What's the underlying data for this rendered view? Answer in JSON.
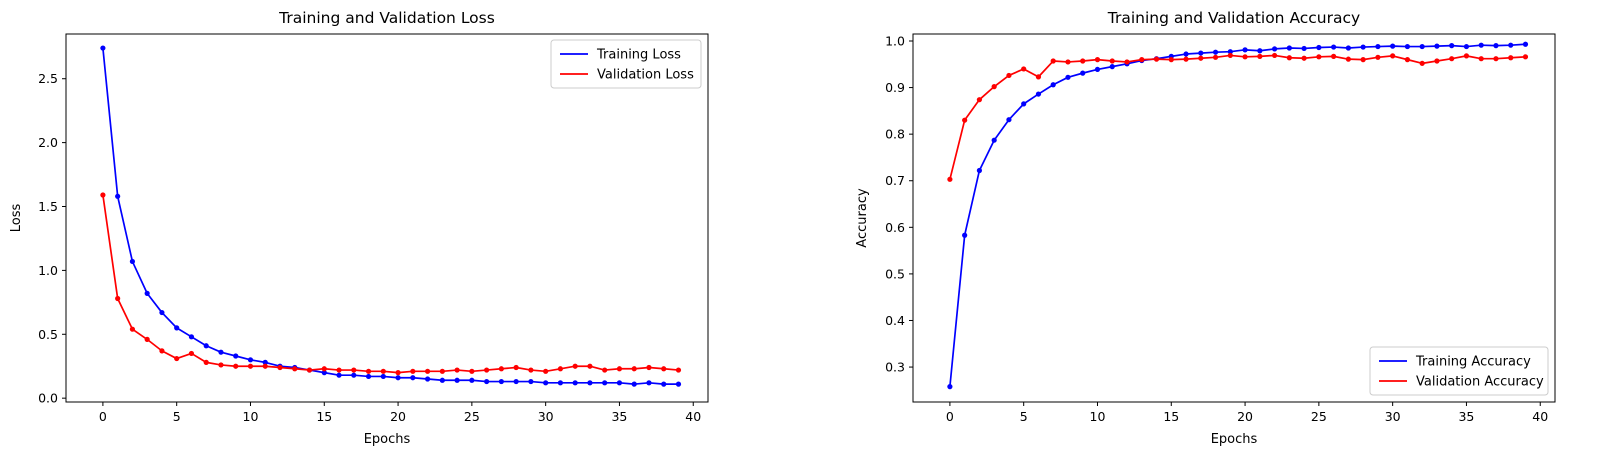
{
  "chart_data": [
    {
      "type": "line",
      "title": "Training and Validation Loss",
      "xlabel": "Epochs",
      "ylabel": "Loss",
      "xlim": [
        -2.5,
        41
      ],
      "ylim": [
        -0.03,
        2.85
      ],
      "xticks": [
        0,
        5,
        10,
        15,
        20,
        25,
        30,
        35,
        40
      ],
      "yticks": [
        0.0,
        0.5,
        1.0,
        1.5,
        2.0,
        2.5
      ],
      "ytick_labels": [
        "0.0",
        "0.5",
        "1.0",
        "1.5",
        "2.0",
        "2.5"
      ],
      "grid": false,
      "legend_position": "upper right",
      "x": [
        0,
        1,
        2,
        3,
        4,
        5,
        6,
        7,
        8,
        9,
        10,
        11,
        12,
        13,
        14,
        15,
        16,
        17,
        18,
        19,
        20,
        21,
        22,
        23,
        24,
        25,
        26,
        27,
        28,
        29,
        30,
        31,
        32,
        33,
        34,
        35,
        36,
        37,
        38,
        39
      ],
      "series": [
        {
          "name": "Training Loss",
          "color": "#0000ff",
          "values": [
            2.74,
            1.58,
            1.07,
            0.82,
            0.67,
            0.55,
            0.48,
            0.41,
            0.36,
            0.33,
            0.3,
            0.28,
            0.25,
            0.24,
            0.22,
            0.2,
            0.18,
            0.18,
            0.17,
            0.17,
            0.16,
            0.16,
            0.15,
            0.14,
            0.14,
            0.14,
            0.13,
            0.13,
            0.13,
            0.13,
            0.12,
            0.12,
            0.12,
            0.12,
            0.12,
            0.12,
            0.11,
            0.12,
            0.11,
            0.11
          ]
        },
        {
          "name": "Validation Loss",
          "color": "#ff0000",
          "values": [
            1.59,
            0.78,
            0.54,
            0.46,
            0.37,
            0.31,
            0.35,
            0.28,
            0.26,
            0.25,
            0.25,
            0.25,
            0.24,
            0.23,
            0.22,
            0.23,
            0.22,
            0.22,
            0.21,
            0.21,
            0.2,
            0.21,
            0.21,
            0.21,
            0.22,
            0.21,
            0.22,
            0.23,
            0.24,
            0.22,
            0.21,
            0.23,
            0.25,
            0.25,
            0.22,
            0.23,
            0.23,
            0.24,
            0.23,
            0.22
          ]
        }
      ]
    },
    {
      "type": "line",
      "title": "Training and Validation Accuracy",
      "xlabel": "Epochs",
      "ylabel": "Accuracy",
      "xlim": [
        -2.5,
        41
      ],
      "ylim": [
        0.225,
        1.015
      ],
      "xticks": [
        0,
        5,
        10,
        15,
        20,
        25,
        30,
        35,
        40
      ],
      "yticks": [
        0.3,
        0.4,
        0.5,
        0.6,
        0.7,
        0.8,
        0.9,
        1.0
      ],
      "ytick_labels": [
        "0.3",
        "0.4",
        "0.5",
        "0.6",
        "0.7",
        "0.8",
        "0.9",
        "1.0"
      ],
      "grid": false,
      "legend_position": "lower right",
      "x": [
        0,
        1,
        2,
        3,
        4,
        5,
        6,
        7,
        8,
        9,
        10,
        11,
        12,
        13,
        14,
        15,
        16,
        17,
        18,
        19,
        20,
        21,
        22,
        23,
        24,
        25,
        26,
        27,
        28,
        29,
        30,
        31,
        32,
        33,
        34,
        35,
        36,
        37,
        38,
        39
      ],
      "series": [
        {
          "name": "Training Accuracy",
          "color": "#0000ff",
          "values": [
            0.258,
            0.583,
            0.722,
            0.787,
            0.831,
            0.865,
            0.886,
            0.906,
            0.922,
            0.931,
            0.939,
            0.945,
            0.951,
            0.958,
            0.962,
            0.967,
            0.972,
            0.974,
            0.976,
            0.977,
            0.981,
            0.979,
            0.983,
            0.985,
            0.984,
            0.986,
            0.987,
            0.985,
            0.987,
            0.988,
            0.989,
            0.988,
            0.988,
            0.989,
            0.99,
            0.988,
            0.991,
            0.99,
            0.991,
            0.993
          ]
        },
        {
          "name": "Validation Accuracy",
          "color": "#ff0000",
          "values": [
            0.703,
            0.83,
            0.874,
            0.902,
            0.926,
            0.94,
            0.923,
            0.957,
            0.955,
            0.957,
            0.96,
            0.957,
            0.955,
            0.96,
            0.961,
            0.96,
            0.961,
            0.963,
            0.965,
            0.969,
            0.966,
            0.967,
            0.969,
            0.964,
            0.963,
            0.966,
            0.967,
            0.961,
            0.96,
            0.965,
            0.968,
            0.96,
            0.952,
            0.957,
            0.962,
            0.968,
            0.962,
            0.962,
            0.964,
            0.966
          ]
        }
      ]
    }
  ]
}
